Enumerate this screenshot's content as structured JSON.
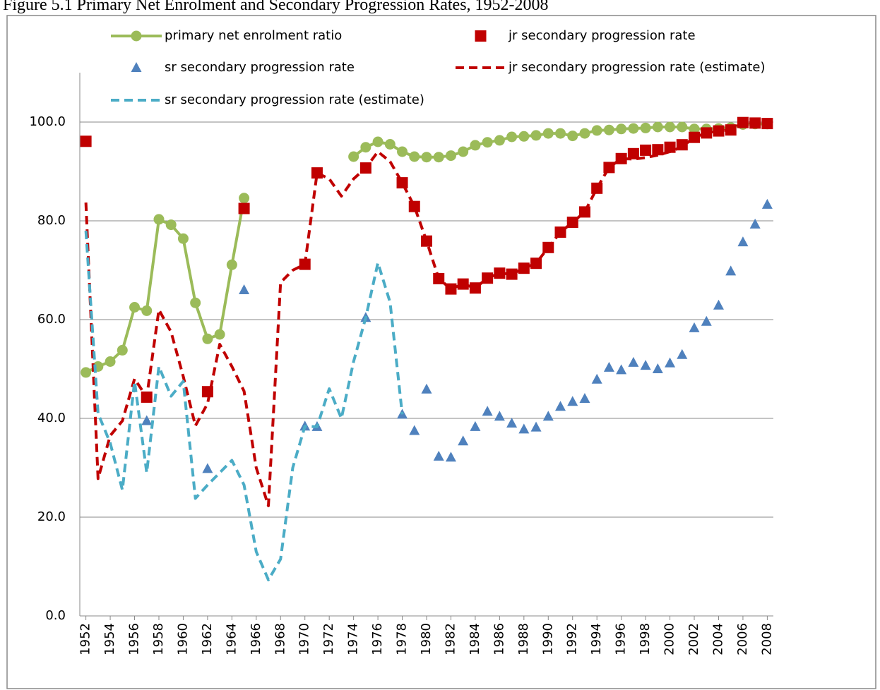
{
  "chart_data": {
    "type": "line",
    "title": "Figure 5.1 Primary Net Enrolment and Secondary Progression Rates, 1952-2008",
    "x": [
      1952,
      1953,
      1954,
      1955,
      1956,
      1957,
      1958,
      1959,
      1960,
      1961,
      1962,
      1963,
      1964,
      1965,
      1966,
      1967,
      1968,
      1969,
      1970,
      1971,
      1972,
      1973,
      1974,
      1975,
      1976,
      1977,
      1978,
      1979,
      1980,
      1981,
      1982,
      1983,
      1984,
      1985,
      1986,
      1987,
      1988,
      1989,
      1990,
      1991,
      1992,
      1993,
      1994,
      1995,
      1996,
      1997,
      1998,
      1999,
      2000,
      2001,
      2002,
      2003,
      2004,
      2005,
      2006,
      2007,
      2008
    ],
    "xlim": [
      1951.5,
      2008.5
    ],
    "xticks": [
      1952,
      1954,
      1956,
      1958,
      1960,
      1962,
      1964,
      1966,
      1968,
      1970,
      1972,
      1974,
      1976,
      1978,
      1980,
      1982,
      1984,
      1986,
      1988,
      1990,
      1992,
      1994,
      1996,
      1998,
      2000,
      2002,
      2004,
      2006,
      2008
    ],
    "ylim": [
      0,
      110
    ],
    "yticks": [
      {
        "value": 0,
        "label": "0.0"
      },
      {
        "value": 20,
        "label": "20.0"
      },
      {
        "value": 40,
        "label": "40.0"
      },
      {
        "value": 60,
        "label": "60.0"
      },
      {
        "value": 80,
        "label": "80.0"
      },
      {
        "value": 100,
        "label": "100.0"
      }
    ],
    "grid": true,
    "legend": "top",
    "series": [
      {
        "name": "primary net enrolment ratio",
        "color": "#9bbb59",
        "marker": "circle",
        "line": "solid",
        "values": [
          49.3,
          50.5,
          51.5,
          53.8,
          62.5,
          61.8,
          80.3,
          79.2,
          76.4,
          63.4,
          56.1,
          57.0,
          71.1,
          84.6,
          null,
          null,
          null,
          null,
          null,
          null,
          null,
          null,
          93.0,
          94.9,
          96.0,
          95.5,
          94.0,
          93.0,
          92.9,
          92.9,
          93.2,
          94.0,
          95.3,
          95.9,
          96.3,
          97.0,
          97.1,
          97.3,
          97.7,
          97.7,
          97.2,
          97.7,
          98.3,
          98.4,
          98.6,
          98.7,
          98.8,
          99.0,
          99.0,
          99.0,
          98.6,
          98.6,
          98.7,
          98.9,
          99.5,
          99.6,
          99.6
        ]
      },
      {
        "name": "jr secondary progression rate",
        "color": "#c00000",
        "marker": "square",
        "values": [
          96.1,
          null,
          null,
          null,
          null,
          44.3,
          null,
          null,
          null,
          null,
          45.4,
          null,
          null,
          82.5,
          null,
          null,
          null,
          null,
          71.2,
          89.7,
          null,
          null,
          null,
          90.7,
          null,
          null,
          87.7,
          82.9,
          75.9,
          68.3,
          66.2,
          67.2,
          66.4,
          68.4,
          69.4,
          69.2,
          70.4,
          71.4,
          74.6,
          77.7,
          79.7,
          81.8,
          86.6,
          90.8,
          92.6,
          93.6,
          94.3,
          94.4,
          94.9,
          95.4,
          96.9,
          97.8,
          98.2,
          98.4,
          99.9,
          99.8,
          99.7
        ]
      },
      {
        "name": "sr secondary progression rate",
        "color": "#4f81bd",
        "marker": "triangle",
        "values": [
          null,
          null,
          null,
          null,
          null,
          39.5,
          null,
          null,
          null,
          null,
          29.8,
          null,
          null,
          66.0,
          null,
          null,
          null,
          null,
          38.4,
          38.3,
          null,
          null,
          null,
          60.4,
          null,
          null,
          40.8,
          37.5,
          45.9,
          32.3,
          32.1,
          35.4,
          38.3,
          41.4,
          40.4,
          39.0,
          37.8,
          38.2,
          40.4,
          42.4,
          43.4,
          44.0,
          47.9,
          50.3,
          49.8,
          51.3,
          50.7,
          50.0,
          51.2,
          52.9,
          58.3,
          59.6,
          62.9,
          69.8,
          75.7,
          79.3,
          83.3
        ]
      },
      {
        "name": "jr secondary progression rate (estimate)",
        "color": "#c00000",
        "line": "dashed",
        "values": [
          83.7,
          27.8,
          36.5,
          39.5,
          48.0,
          44.3,
          62.0,
          57.5,
          48.5,
          38.5,
          43.0,
          55.0,
          50.5,
          45.5,
          30.0,
          22.3,
          67.5,
          70.0,
          71.2,
          89.7,
          88.5,
          85.0,
          88.5,
          90.7,
          94.0,
          92.0,
          87.7,
          82.9,
          75.9,
          68.3,
          66.2,
          67.2,
          66.4,
          68.4,
          69.4,
          69.2,
          70.4,
          71.4,
          74.6,
          77.7,
          79.7,
          81.8,
          86.6,
          90.8,
          92.6,
          92.5,
          92.8,
          93.3,
          94.0,
          95.0,
          96.9,
          97.8,
          98.2,
          98.4,
          99.9,
          99.8,
          99.7
        ]
      },
      {
        "name": "sr secondary progression rate (estimate)",
        "color": "#4bacc6",
        "line": "dashed",
        "values": [
          78.0,
          41.0,
          35.0,
          25.5,
          47.5,
          29.0,
          50.5,
          44.5,
          47.5,
          23.8,
          26.5,
          29.0,
          31.5,
          26.5,
          13.0,
          7.3,
          11.5,
          30.0,
          38.4,
          38.3,
          46.0,
          40.0,
          51.5,
          60.4,
          71.5,
          63.5,
          40.8,
          null,
          null,
          null,
          null,
          null,
          null,
          null,
          null,
          null,
          null,
          null,
          null,
          null,
          null,
          null,
          null,
          null,
          null,
          null,
          null,
          null,
          null,
          null,
          null,
          null,
          null,
          null,
          null,
          null,
          null
        ]
      }
    ]
  }
}
